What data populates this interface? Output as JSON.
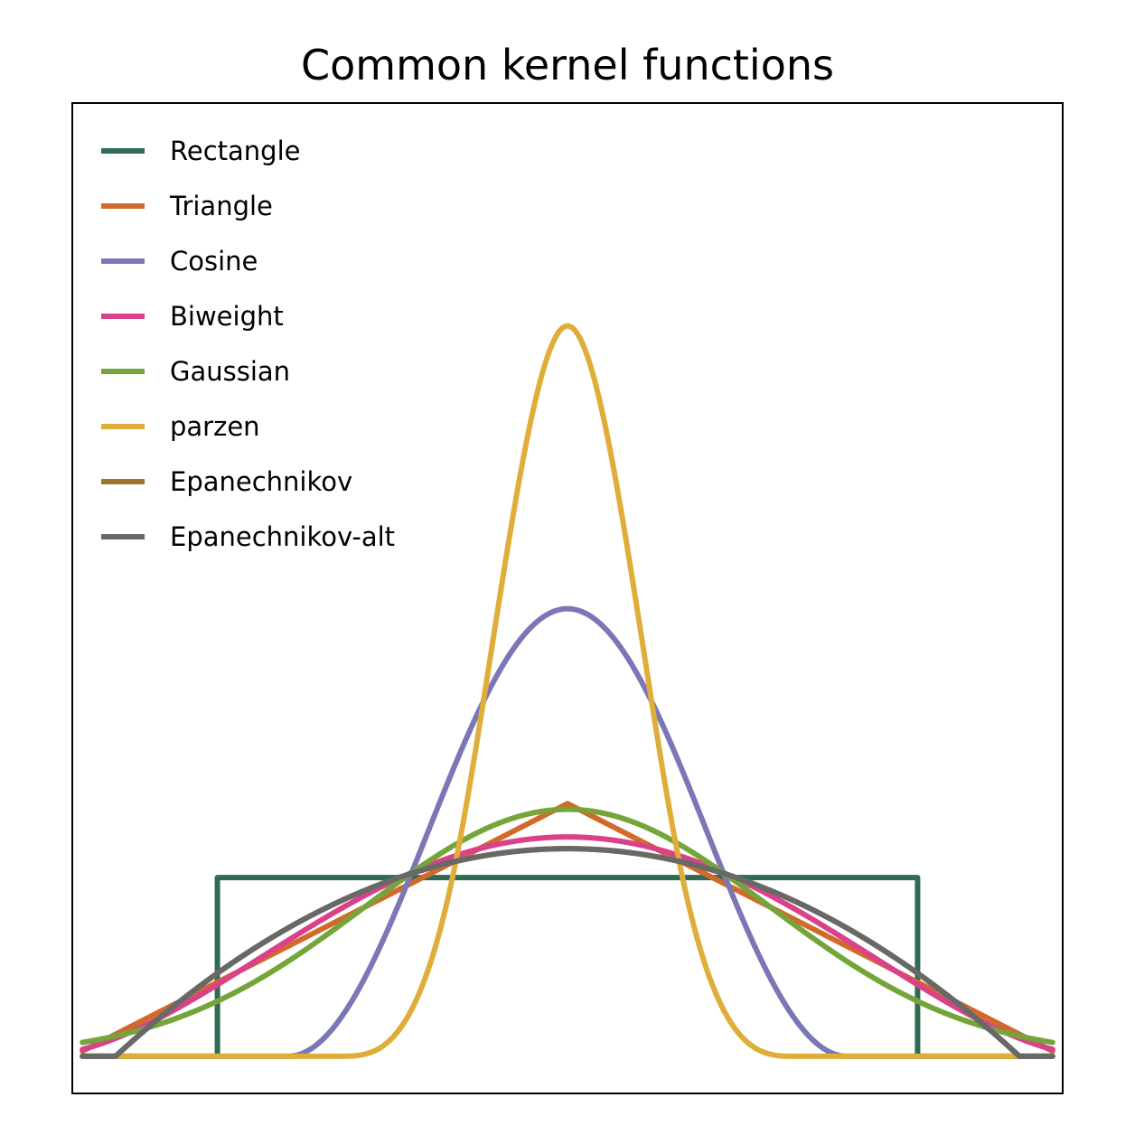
{
  "chart_data": {
    "type": "line",
    "title": "Common kernel functions",
    "xlabel": "",
    "ylabel": "",
    "xlim": [
      -2.45,
      2.45
    ],
    "ylim": [
      -0.06,
      1.54
    ],
    "axes_visible": false,
    "grid": false,
    "legend_position": "top-left",
    "series": [
      {
        "name": "Rectangle",
        "color": "#2f6b50",
        "kernel": "rectangle"
      },
      {
        "name": "Triangle",
        "color": "#d2692b",
        "kernel": "triangle"
      },
      {
        "name": "Cosine",
        "color": "#7b77b6",
        "kernel": "cosine"
      },
      {
        "name": "Biweight",
        "color": "#d9418a",
        "kernel": "biweight"
      },
      {
        "name": "Gaussian",
        "color": "#75a53a",
        "kernel": "gaussian"
      },
      {
        "name": "parzen",
        "color": "#dfae3a",
        "kernel": "parzen"
      },
      {
        "name": "Epanechnikov",
        "color": "#a0742e",
        "kernel": "epanechnikov"
      },
      {
        "name": "Epanechnikov-alt",
        "color": "#686868",
        "kernel": "epanechnikov_alt"
      }
    ]
  }
}
